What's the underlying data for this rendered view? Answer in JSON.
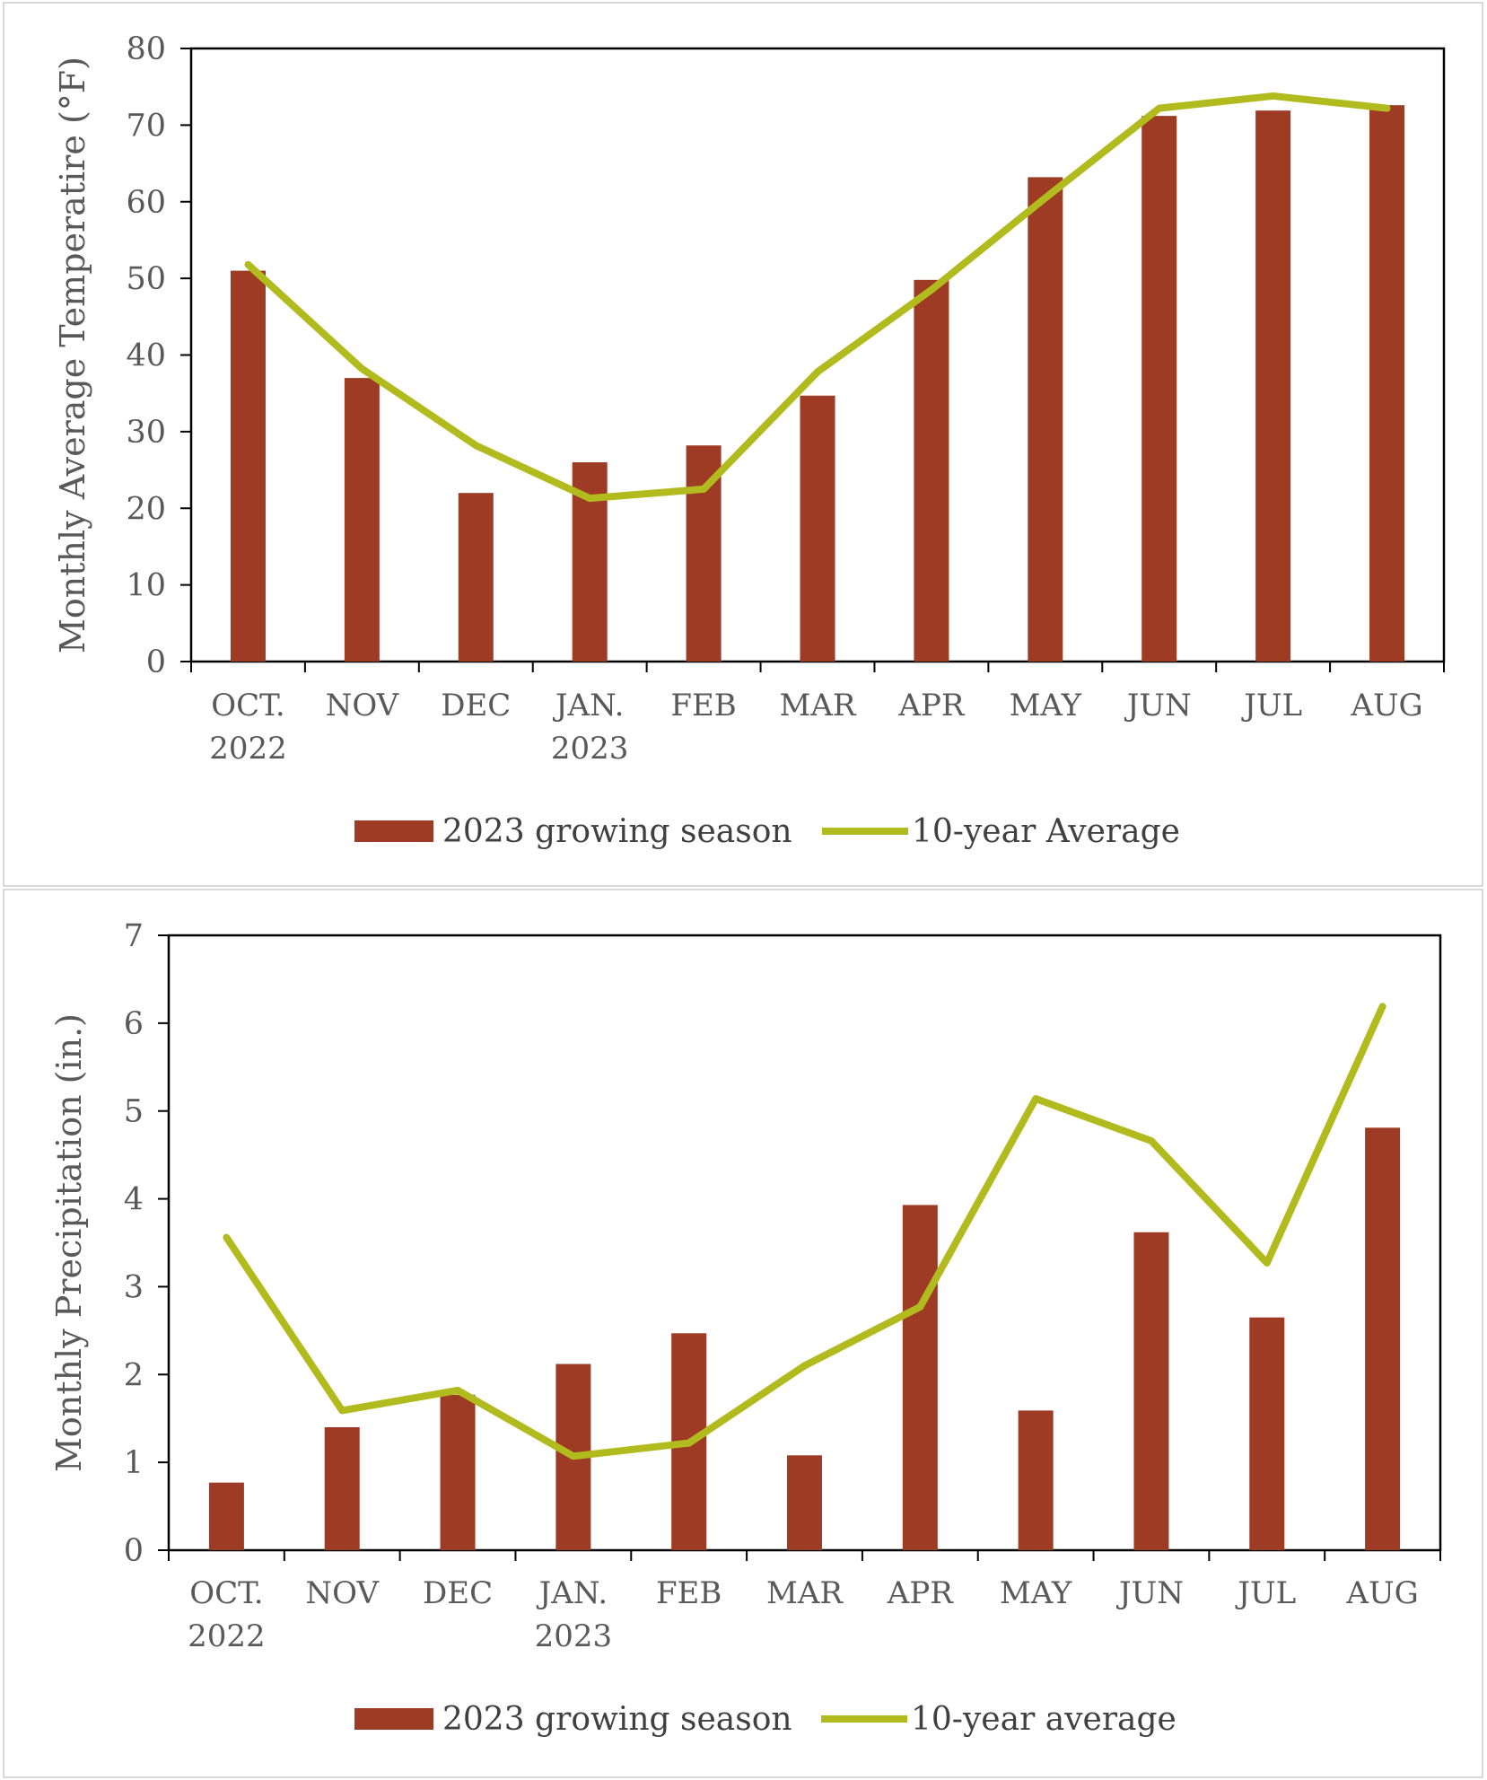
{
  "chart_data": [
    {
      "type": "bar",
      "categories": [
        [
          "OCT.",
          "2022"
        ],
        [
          "NOV"
        ],
        [
          "DEC"
        ],
        [
          "JAN.",
          "2023"
        ],
        [
          "FEB"
        ],
        [
          "MAR"
        ],
        [
          "APR"
        ],
        [
          "MAY"
        ],
        [
          "JUN"
        ],
        [
          "JUL"
        ],
        [
          "AUG"
        ]
      ],
      "ylabel": "Monthly Average Temperatire (°F)",
      "ylim": [
        0,
        80
      ],
      "yticks": [
        0,
        10,
        20,
        30,
        40,
        50,
        60,
        70,
        80
      ],
      "grid": false,
      "legend_position": "bottom",
      "series": [
        {
          "name": "2023 growing season",
          "type": "bar",
          "color": "#9e3b24",
          "values": [
            51,
            37,
            22,
            26,
            28.2,
            34.7,
            49.8,
            63.2,
            71.2,
            71.9,
            72.6
          ]
        },
        {
          "name": "10-year Average",
          "type": "line",
          "color": "#b2bb1e",
          "values": [
            51.8,
            38.2,
            28.2,
            21.3,
            22.5,
            37.8,
            48.5,
            60.5,
            72.2,
            73.8,
            72.2
          ]
        }
      ]
    },
    {
      "type": "bar",
      "categories": [
        [
          "OCT.",
          "2022"
        ],
        [
          "NOV"
        ],
        [
          "DEC"
        ],
        [
          "JAN.",
          "2023"
        ],
        [
          "FEB"
        ],
        [
          "MAR"
        ],
        [
          "APR"
        ],
        [
          "MAY"
        ],
        [
          "JUN"
        ],
        [
          "JUL"
        ],
        [
          "AUG"
        ]
      ],
      "ylabel": "Monthly Precipitation (in.)",
      "ylim": [
        0,
        7
      ],
      "yticks": [
        0,
        1,
        2,
        3,
        4,
        5,
        6,
        7
      ],
      "grid": false,
      "legend_position": "bottom",
      "series": [
        {
          "name": "2023 growing season",
          "type": "bar",
          "color": "#9e3b24",
          "values": [
            0.77,
            1.4,
            1.77,
            2.12,
            2.47,
            1.08,
            3.93,
            1.59,
            3.62,
            2.65,
            4.81
          ]
        },
        {
          "name": "10-year average",
          "type": "line",
          "color": "#b2bb1e",
          "values": [
            3.56,
            1.59,
            1.82,
            1.07,
            1.22,
            2.1,
            2.77,
            5.14,
            4.66,
            3.27,
            6.19
          ]
        }
      ]
    }
  ]
}
